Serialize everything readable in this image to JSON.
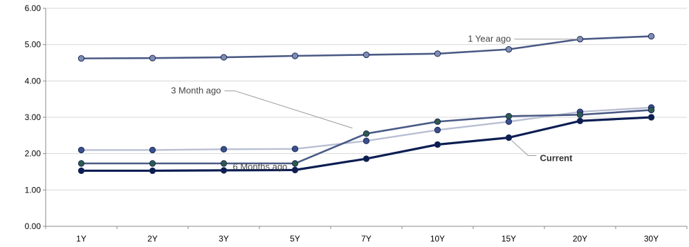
{
  "chart_data": {
    "type": "line",
    "categories": [
      "1Y",
      "2Y",
      "3Y",
      "5Y",
      "7Y",
      "10Y",
      "15Y",
      "20Y",
      "30Y"
    ],
    "ylim": [
      0,
      6
    ],
    "yticks": [
      "0.00",
      "1.00",
      "2.00",
      "3.00",
      "4.00",
      "5.00",
      "6.00"
    ],
    "grid": true,
    "series": [
      {
        "name": "1 Year ago",
        "color": "#4a5a85",
        "marker": "#7f8db4",
        "values": [
          4.62,
          4.63,
          4.65,
          4.69,
          4.72,
          4.75,
          4.87,
          5.15,
          5.23
        ]
      },
      {
        "name": "",
        "color": "#b8bfd3",
        "marker": "#3a4f8f",
        "values": [
          2.1,
          2.1,
          2.12,
          2.13,
          2.35,
          2.65,
          2.88,
          3.15,
          3.27
        ]
      },
      {
        "name": "3 Month ago",
        "color": "#4a5a85",
        "marker": "#2d5a4f",
        "values": [
          1.73,
          1.73,
          1.73,
          1.73,
          2.55,
          2.88,
          3.03,
          3.07,
          3.2
        ]
      },
      {
        "name": "Current",
        "color": "#0b1d52",
        "marker": "#0b1d52",
        "values": [
          1.53,
          1.53,
          1.54,
          1.55,
          1.86,
          2.25,
          2.44,
          2.9,
          3.0
        ]
      }
    ],
    "annotations": [
      {
        "text": "1 Year ago",
        "series": 0,
        "point": 7
      },
      {
        "text": "3 Month ago",
        "series": 2,
        "point": 4
      },
      {
        "text": "6 Months ago",
        "series": 2,
        "point": 3
      },
      {
        "text": "Current",
        "series": 3,
        "point": 6
      }
    ]
  }
}
